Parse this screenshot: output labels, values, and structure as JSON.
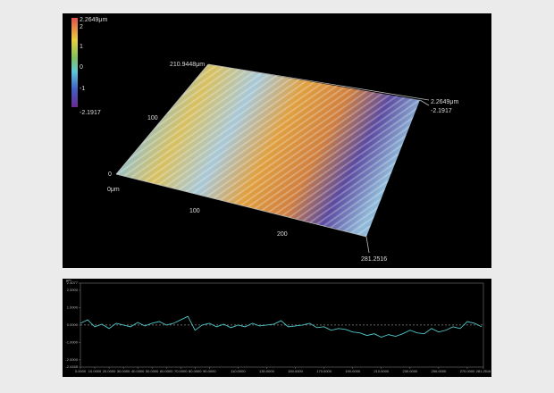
{
  "surface_view": {
    "scale_labels": [
      "2.2649μm",
      "2",
      "1",
      "0",
      "-1",
      "-2.1917"
    ],
    "axis_labels": {
      "y_max": "210.9448μm",
      "y_mid": "100",
      "y_zero": "0",
      "x_zero": "0μm",
      "x_100": "100",
      "x_200": "200",
      "x_max": "281.2516",
      "z_max": "2.2649μm",
      "z_min": "-2.1917"
    }
  },
  "chart_data": {
    "type": "line",
    "y_label": "μm",
    "color": "#4fc6c6",
    "x": [
      0,
      5,
      10,
      15,
      20,
      25,
      30,
      35,
      40,
      45,
      50,
      55,
      60,
      65,
      70,
      75,
      80,
      85,
      90,
      95,
      100,
      105,
      110,
      115,
      120,
      125,
      130,
      135,
      140,
      145,
      150,
      155,
      160,
      165,
      170,
      175,
      180,
      185,
      190,
      195,
      200,
      205,
      210,
      215,
      220,
      225,
      230,
      235,
      240,
      245,
      250,
      255,
      260,
      265,
      270,
      275,
      280
    ],
    "values": [
      0.1,
      0.3,
      -0.1,
      0.05,
      -0.2,
      0.1,
      0,
      -0.1,
      0.15,
      -0.05,
      0.1,
      0.2,
      0,
      0.1,
      0.3,
      0.5,
      -0.3,
      0.0,
      0.1,
      -0.1,
      0.05,
      -0.15,
      0.0,
      -0.1,
      0.1,
      -0.05,
      0.0,
      0.05,
      0.25,
      -0.1,
      -0.05,
      0.0,
      0.1,
      -0.15,
      -0.1,
      -0.3,
      -0.2,
      -0.25,
      -0.4,
      -0.45,
      -0.6,
      -0.5,
      -0.7,
      -0.55,
      -0.65,
      -0.5,
      -0.3,
      -0.45,
      -0.5,
      -0.2,
      -0.4,
      -0.3,
      -0.1,
      -0.2,
      0.2,
      0.1,
      -0.1
    ],
    "xlim": [
      0,
      281.2516
    ],
    "ylim": [
      -2.4165,
      2.4077
    ],
    "yticks": [
      {
        "value": 2.4077,
        "label": "2.4077"
      },
      {
        "value": 2,
        "label": "2.0000"
      },
      {
        "value": 1,
        "label": "1.0000"
      },
      {
        "value": 0,
        "label": "0.0000"
      },
      {
        "value": -1,
        "label": "-1.0000"
      },
      {
        "value": -2,
        "label": "-2.0000"
      },
      {
        "value": -2.4165,
        "label": "-2.4165"
      }
    ],
    "xticks": [
      {
        "value": 0,
        "label": "0.0000"
      },
      {
        "value": 10,
        "label": "10.0000"
      },
      {
        "value": 20,
        "label": "20.0000"
      },
      {
        "value": 30,
        "label": "30.0000"
      },
      {
        "value": 40,
        "label": "40.0000"
      },
      {
        "value": 50,
        "label": "50.0000"
      },
      {
        "value": 60,
        "label": "60.0000"
      },
      {
        "value": 70,
        "label": "70.0000"
      },
      {
        "value": 80,
        "label": "80.0000"
      },
      {
        "value": 90,
        "label": "90.0000"
      },
      {
        "value": 110,
        "label": "110.0000"
      },
      {
        "value": 130,
        "label": "130.0000"
      },
      {
        "value": 150,
        "label": "150.0000"
      },
      {
        "value": 170,
        "label": "170.0000"
      },
      {
        "value": 190,
        "label": "190.0000"
      },
      {
        "value": 210,
        "label": "210.0000"
      },
      {
        "value": 230,
        "label": "230.0000"
      },
      {
        "value": 250,
        "label": "250.0000"
      },
      {
        "value": 270,
        "label": "270.0000"
      },
      {
        "value": 281.2516,
        "label": "281.2516"
      }
    ]
  }
}
